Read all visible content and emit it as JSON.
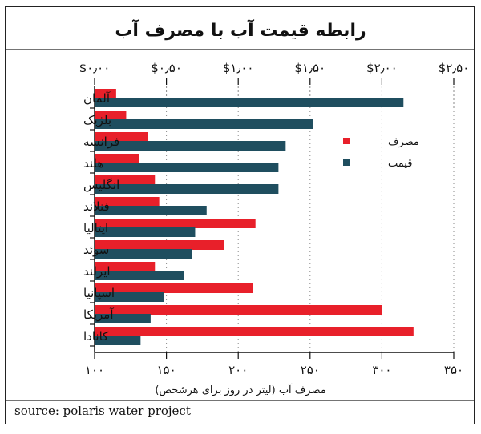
{
  "chart_data": {
    "type": "bar",
    "title": "رابطه قیمت آب با مصرف آب",
    "top_axis": {
      "ticks": [
        "$۰٫۰۰",
        "$۰٫۵۰",
        "$۱٫۰۰",
        "$۱٫۵۰",
        "$۲٫۰۰",
        "$۲٫۵۰"
      ],
      "values": [
        0,
        0.5,
        1,
        1.5,
        2,
        2.5
      ],
      "range": [
        0,
        2.5
      ]
    },
    "bottom_axis": {
      "ticks": [
        "۱۰۰",
        "۱۵۰",
        "۲۰۰",
        "۲۵۰",
        "۳۰۰",
        "۳۵۰"
      ],
      "values": [
        100,
        150,
        200,
        250,
        300,
        350
      ],
      "range": [
        100,
        350
      ],
      "label": "مصرف آب (لیتر در روز برای هرشخص)"
    },
    "categories": [
      "آلمان",
      "بلژیک",
      "فرانسه",
      "هلند",
      "انگلیس",
      "فنلاند",
      "ایتالیا",
      "سوئد",
      "ایرلند",
      "اسپانیا",
      "آمریکا",
      "کانادا"
    ],
    "series": [
      {
        "name": "مصرف",
        "color": "#e8202a",
        "unit": "liters",
        "values": [
          115,
          122,
          137,
          131,
          142,
          145,
          212,
          190,
          142,
          210,
          300,
          322
        ]
      },
      {
        "name": "قیمت",
        "color": "#1f4e5f",
        "unit": "usd",
        "values": [
          2.15,
          1.52,
          1.33,
          1.28,
          1.28,
          0.78,
          0.7,
          0.68,
          0.62,
          0.48,
          0.39,
          0.32
        ]
      }
    ],
    "legend_position": "right"
  },
  "source": "source: polaris water project"
}
